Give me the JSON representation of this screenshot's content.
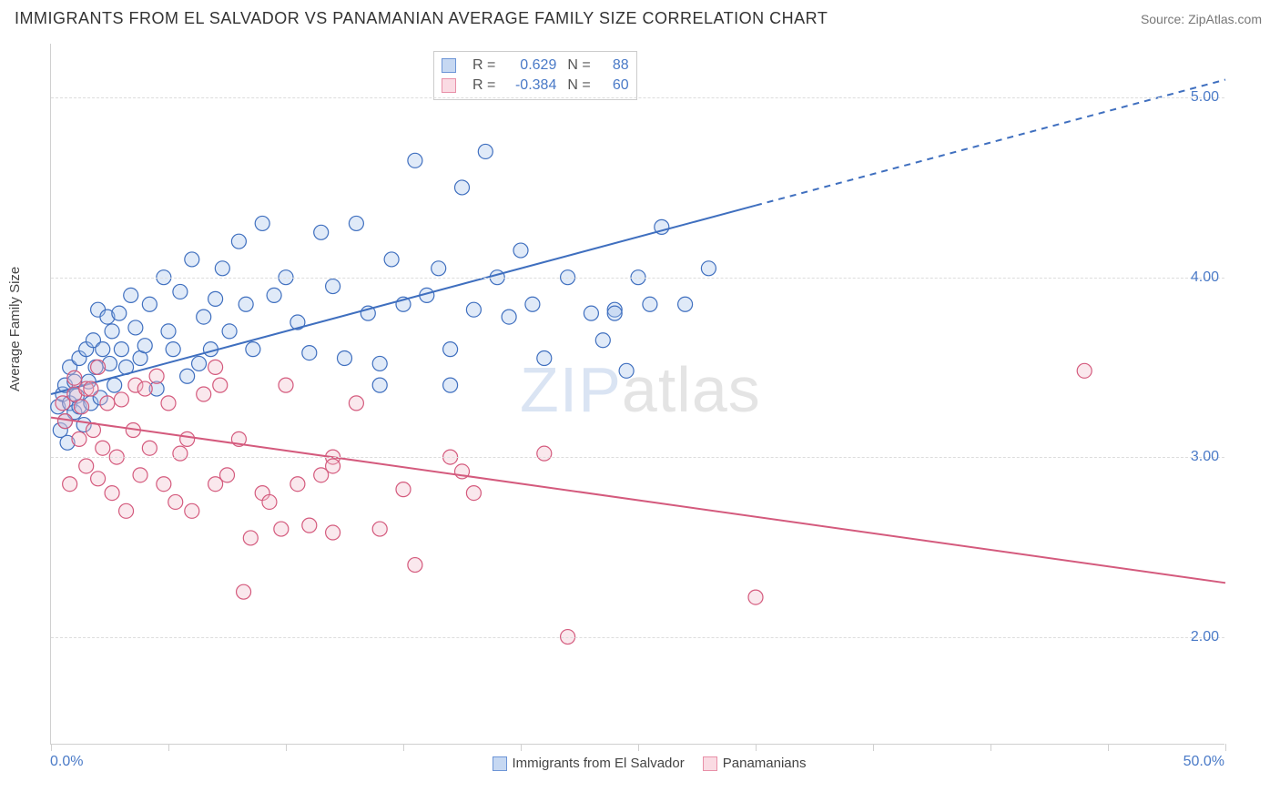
{
  "title": "IMMIGRANTS FROM EL SALVADOR VS PANAMANIAN AVERAGE FAMILY SIZE CORRELATION CHART",
  "source": "Source: ZipAtlas.com",
  "watermark_bold": "ZIP",
  "watermark_thin": "atlas",
  "chart": {
    "type": "scatter-with-regression",
    "xlim": [
      0,
      50
    ],
    "ylim": [
      1.4,
      5.3
    ],
    "yticks": [
      2.0,
      3.0,
      4.0,
      5.0
    ],
    "ytick_labels": [
      "2.00",
      "3.00",
      "4.00",
      "5.00"
    ],
    "xtick_positions": [
      0,
      5,
      10,
      15,
      20,
      25,
      30,
      35,
      40,
      45,
      50
    ],
    "xmin_label": "0.0%",
    "xmax_label": "50.0%",
    "ylabel": "Average Family Size",
    "background_color": "#ffffff",
    "grid_color": "#dddddd",
    "axis_color": "#d0d0d0",
    "tick_label_color": "#4a7ac7",
    "marker_radius": 8,
    "marker_stroke_width": 1.2,
    "marker_fill_opacity": 0.35,
    "line_width": 2
  },
  "series": [
    {
      "name": "Immigrants from El Salvador",
      "color_stroke": "#3f6fbf",
      "color_fill": "#a6c3ea",
      "legend_swatch_fill": "#c6d8f2",
      "legend_swatch_border": "#6d95d6",
      "R": "0.629",
      "N": "88",
      "regression": {
        "x1": 0,
        "y1": 3.35,
        "x2": 50,
        "y2": 5.1,
        "solid_until_x": 30
      },
      "points": [
        [
          0.3,
          3.28
        ],
        [
          0.4,
          3.15
        ],
        [
          0.5,
          3.35
        ],
        [
          0.6,
          3.2
        ],
        [
          0.6,
          3.4
        ],
        [
          0.7,
          3.08
        ],
        [
          0.8,
          3.5
        ],
        [
          0.8,
          3.3
        ],
        [
          1.0,
          3.25
        ],
        [
          1.0,
          3.42
        ],
        [
          1.1,
          3.34
        ],
        [
          1.2,
          3.55
        ],
        [
          1.2,
          3.28
        ],
        [
          1.4,
          3.18
        ],
        [
          1.5,
          3.6
        ],
        [
          1.6,
          3.42
        ],
        [
          1.7,
          3.3
        ],
        [
          1.8,
          3.65
        ],
        [
          1.9,
          3.5
        ],
        [
          2.0,
          3.82
        ],
        [
          2.1,
          3.33
        ],
        [
          2.2,
          3.6
        ],
        [
          2.4,
          3.78
        ],
        [
          2.5,
          3.52
        ],
        [
          2.6,
          3.7
        ],
        [
          2.7,
          3.4
        ],
        [
          2.9,
          3.8
        ],
        [
          3.0,
          3.6
        ],
        [
          3.2,
          3.5
        ],
        [
          3.4,
          3.9
        ],
        [
          3.6,
          3.72
        ],
        [
          3.8,
          3.55
        ],
        [
          4.0,
          3.62
        ],
        [
          4.2,
          3.85
        ],
        [
          4.5,
          3.38
        ],
        [
          4.8,
          4.0
        ],
        [
          5.0,
          3.7
        ],
        [
          5.2,
          3.6
        ],
        [
          5.5,
          3.92
        ],
        [
          5.8,
          3.45
        ],
        [
          6.0,
          4.1
        ],
        [
          6.3,
          3.52
        ],
        [
          6.5,
          3.78
        ],
        [
          6.8,
          3.6
        ],
        [
          7.0,
          3.88
        ],
        [
          7.3,
          4.05
        ],
        [
          7.6,
          3.7
        ],
        [
          8.0,
          4.2
        ],
        [
          8.3,
          3.85
        ],
        [
          8.6,
          3.6
        ],
        [
          9.0,
          4.3
        ],
        [
          9.5,
          3.9
        ],
        [
          10.0,
          4.0
        ],
        [
          10.5,
          3.75
        ],
        [
          11.0,
          3.58
        ],
        [
          11.5,
          4.25
        ],
        [
          12.0,
          3.95
        ],
        [
          12.5,
          3.55
        ],
        [
          13.0,
          4.3
        ],
        [
          13.5,
          3.8
        ],
        [
          14.0,
          3.52
        ],
        [
          14.5,
          4.1
        ],
        [
          15.0,
          3.85
        ],
        [
          15.5,
          4.65
        ],
        [
          16.0,
          3.9
        ],
        [
          16.5,
          4.05
        ],
        [
          17.0,
          3.6
        ],
        [
          17.5,
          4.5
        ],
        [
          18.0,
          3.82
        ],
        [
          18.5,
          4.7
        ],
        [
          19.0,
          4.0
        ],
        [
          19.5,
          3.78
        ],
        [
          20.0,
          4.15
        ],
        [
          20.5,
          3.85
        ],
        [
          21.0,
          3.55
        ],
        [
          22.0,
          4.0
        ],
        [
          23.0,
          3.8
        ],
        [
          23.5,
          3.65
        ],
        [
          24.0,
          3.82
        ],
        [
          24.5,
          3.48
        ],
        [
          25.0,
          4.0
        ],
        [
          26.0,
          4.28
        ],
        [
          27.0,
          3.85
        ],
        [
          28.0,
          4.05
        ],
        [
          24.0,
          3.8
        ],
        [
          25.5,
          3.85
        ],
        [
          17.0,
          3.4
        ],
        [
          14.0,
          3.4
        ]
      ]
    },
    {
      "name": "Panamanians",
      "color_stroke": "#d45a7d",
      "color_fill": "#f2bccb",
      "legend_swatch_fill": "#fadbe3",
      "legend_swatch_border": "#e890a8",
      "R": "-0.384",
      "N": "60",
      "regression": {
        "x1": 0,
        "y1": 3.22,
        "x2": 50,
        "y2": 2.3,
        "solid_until_x": 50
      },
      "points": [
        [
          0.5,
          3.3
        ],
        [
          0.6,
          3.2
        ],
        [
          0.8,
          2.85
        ],
        [
          1.0,
          3.35
        ],
        [
          1.0,
          3.44
        ],
        [
          1.2,
          3.1
        ],
        [
          1.3,
          3.28
        ],
        [
          1.5,
          2.95
        ],
        [
          1.5,
          3.38
        ],
        [
          1.7,
          3.38
        ],
        [
          1.8,
          3.15
        ],
        [
          2.0,
          3.5
        ],
        [
          2.0,
          2.88
        ],
        [
          2.2,
          3.05
        ],
        [
          2.4,
          3.3
        ],
        [
          2.6,
          2.8
        ],
        [
          2.8,
          3.0
        ],
        [
          3.0,
          3.32
        ],
        [
          3.2,
          2.7
        ],
        [
          3.5,
          3.15
        ],
        [
          3.6,
          3.4
        ],
        [
          3.8,
          2.9
        ],
        [
          4.0,
          3.38
        ],
        [
          4.2,
          3.05
        ],
        [
          4.5,
          3.45
        ],
        [
          4.8,
          2.85
        ],
        [
          5.0,
          3.3
        ],
        [
          5.3,
          2.75
        ],
        [
          5.5,
          3.02
        ],
        [
          5.8,
          3.1
        ],
        [
          6.0,
          2.7
        ],
        [
          6.5,
          3.35
        ],
        [
          7.0,
          2.85
        ],
        [
          7.0,
          3.5
        ],
        [
          7.5,
          2.9
        ],
        [
          7.2,
          3.4
        ],
        [
          8.0,
          3.1
        ],
        [
          8.2,
          2.25
        ],
        [
          8.5,
          2.55
        ],
        [
          9.0,
          2.8
        ],
        [
          9.3,
          2.75
        ],
        [
          10.0,
          3.4
        ],
        [
          10.5,
          2.85
        ],
        [
          11.0,
          2.62
        ],
        [
          12.0,
          3.0
        ],
        [
          12.0,
          2.58
        ],
        [
          12.0,
          2.95
        ],
        [
          13.0,
          3.3
        ],
        [
          14.0,
          2.6
        ],
        [
          15.0,
          2.82
        ],
        [
          15.5,
          2.4
        ],
        [
          17.0,
          3.0
        ],
        [
          17.5,
          2.92
        ],
        [
          18.0,
          2.8
        ],
        [
          21.0,
          3.02
        ],
        [
          22.0,
          2.0
        ],
        [
          30.0,
          2.22
        ],
        [
          44.0,
          3.48
        ],
        [
          11.5,
          2.9
        ],
        [
          9.8,
          2.6
        ]
      ]
    }
  ]
}
